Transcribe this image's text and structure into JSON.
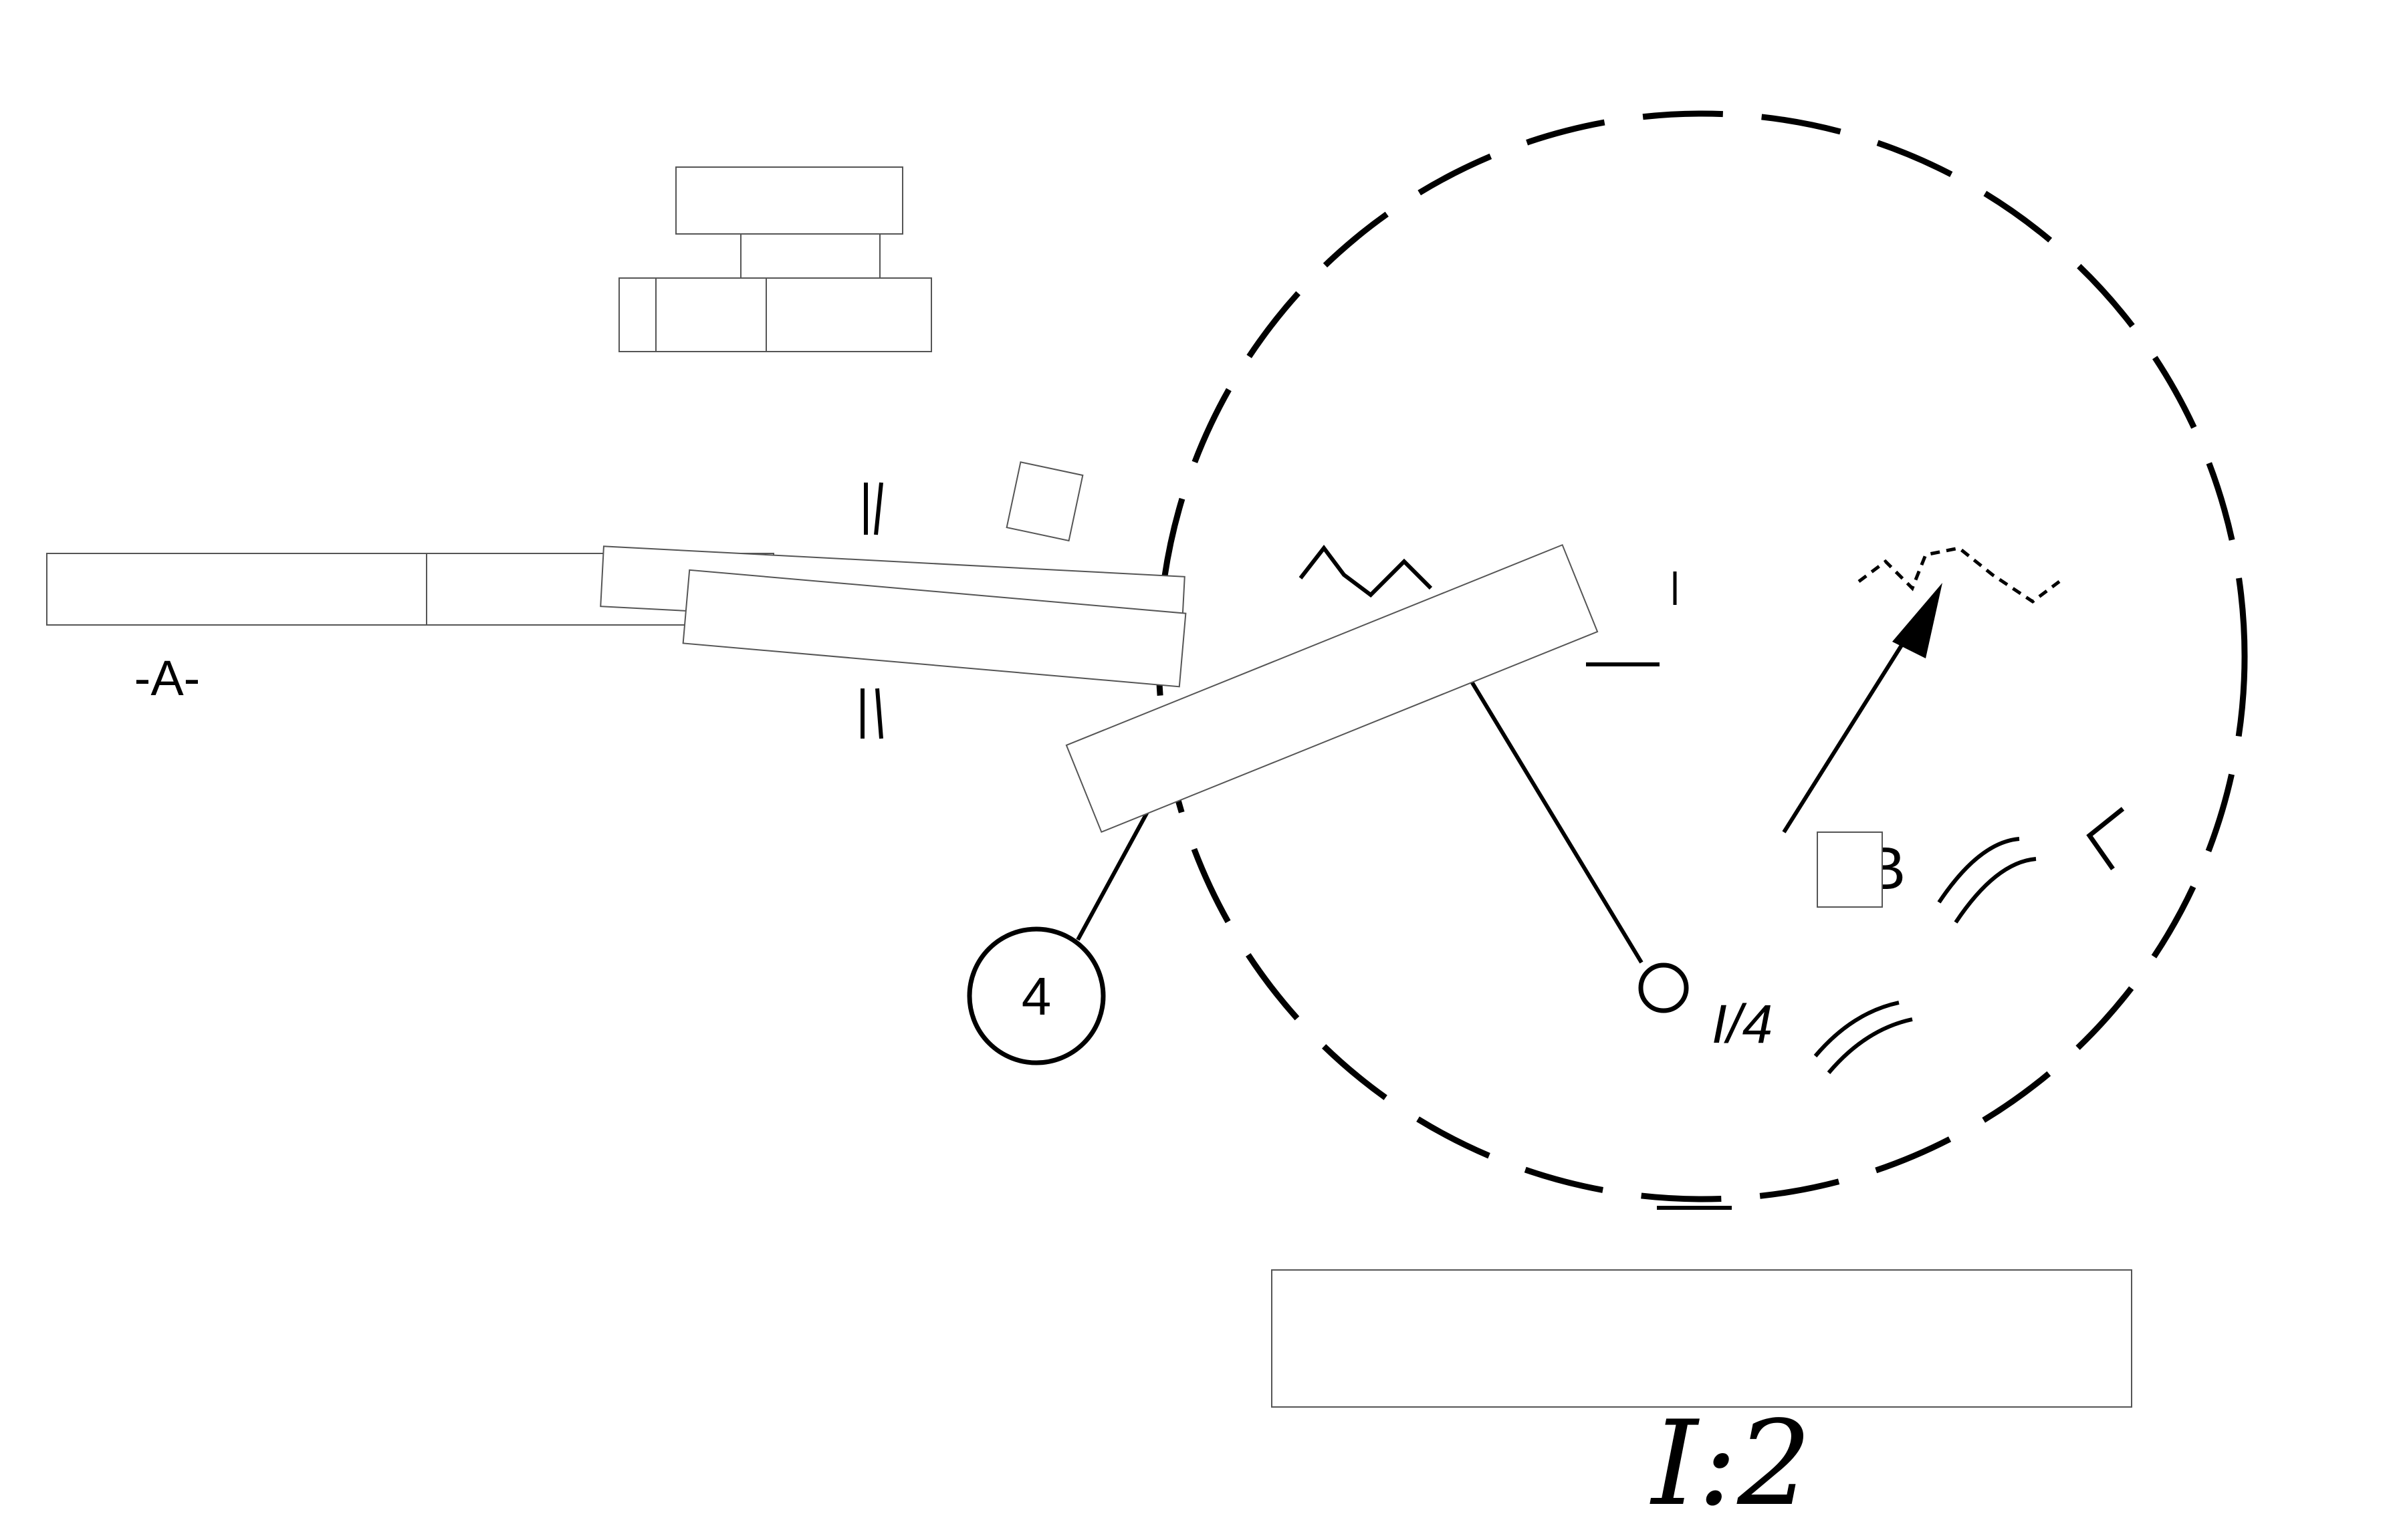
{
  "labels": {
    "section": "-A-",
    "callout": "4",
    "detail_ref": "B",
    "dim_quarter": "I/4",
    "scale": "I:2"
  },
  "colors": {
    "ink": "#000000",
    "mask": "#ffffff",
    "mask_border": "#555555"
  }
}
